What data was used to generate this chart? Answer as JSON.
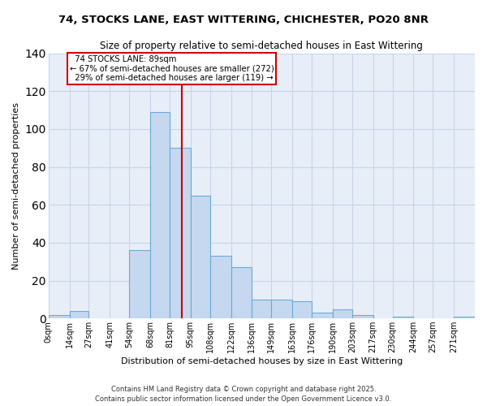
{
  "title1": "74, STOCKS LANE, EAST WITTERING, CHICHESTER, PO20 8NR",
  "title2": "Size of property relative to semi-detached houses in East Wittering",
  "xlabel": "Distribution of semi-detached houses by size in East Wittering",
  "ylabel": "Number of semi-detached properties",
  "bin_labels": [
    "0sqm",
    "14sqm",
    "27sqm",
    "41sqm",
    "54sqm",
    "68sqm",
    "81sqm",
    "95sqm",
    "108sqm",
    "122sqm",
    "136sqm",
    "149sqm",
    "163sqm",
    "176sqm",
    "190sqm",
    "203sqm",
    "217sqm",
    "230sqm",
    "244sqm",
    "257sqm",
    "271sqm"
  ],
  "bar_heights": [
    2,
    4,
    0,
    0,
    36,
    109,
    90,
    65,
    33,
    27,
    10,
    10,
    9,
    3,
    5,
    2,
    0,
    1,
    0,
    0,
    1
  ],
  "bar_color": "#c5d8f0",
  "bar_edge_color": "#6aaad4",
  "grid_color": "#c8d4e8",
  "background_color": "#e8eef8",
  "property_size": 89,
  "property_label": "74 STOCKS LANE: 89sqm",
  "smaller_pct": "67%",
  "smaller_count": 272,
  "larger_pct": "29%",
  "larger_count": 119,
  "red_line_color": "#cc0000",
  "annotation_box_facecolor": "#ffffff",
  "annotation_box_edgecolor": "#cc0000",
  "ylim": [
    0,
    140
  ],
  "footer1": "Contains HM Land Registry data © Crown copyright and database right 2025.",
  "footer2": "Contains public sector information licensed under the Open Government Licence v3.0."
}
